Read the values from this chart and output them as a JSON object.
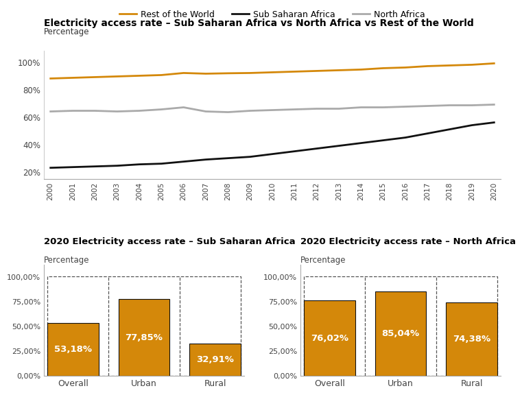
{
  "title": "Electricity access rate – Sub Saharan Africa vs North Africa vs Rest of the World",
  "subtitle": "Percentage",
  "years": [
    2000,
    2001,
    2002,
    2003,
    2004,
    2005,
    2006,
    2007,
    2008,
    2009,
    2010,
    2011,
    2012,
    2013,
    2014,
    2015,
    2016,
    2017,
    2018,
    2019,
    2020
  ],
  "rest_of_world": [
    88,
    88.5,
    89,
    89.5,
    90,
    90.5,
    92,
    91.5,
    91.8,
    92,
    92.5,
    93,
    93.5,
    94,
    94.5,
    95.5,
    96,
    97,
    97.5,
    98,
    99
  ],
  "sub_saharan": [
    23,
    23.5,
    24,
    24.5,
    25.5,
    26,
    27.5,
    29,
    30,
    31,
    33,
    35,
    37,
    39,
    41,
    43,
    45,
    48,
    51,
    54,
    56
  ],
  "north_africa": [
    64,
    64.5,
    64.5,
    64,
    64.5,
    65.5,
    67,
    64,
    63.5,
    64.5,
    65,
    65.5,
    66,
    66,
    67,
    67,
    67.5,
    68,
    68.5,
    68.5,
    69
  ],
  "line_colors": {
    "rest_of_world": "#D4880A",
    "sub_saharan": "#111111",
    "north_africa": "#aaaaaa"
  },
  "legend_labels": [
    "Rest of the World",
    "Sub Saharan Africa",
    "North Africa"
  ],
  "yticks_line": [
    20,
    40,
    60,
    80,
    100
  ],
  "ytick_labels_line": [
    "20%",
    "40%",
    "60%",
    "80%",
    "100%"
  ],
  "bar_color": "#D4880A",
  "bar_edge_color": "#111111",
  "bar_ssa": {
    "title": "2020 Electricity access rate – Sub Saharan Africa",
    "subtitle": "Percentage",
    "categories": [
      "Overall",
      "Urban",
      "Rural"
    ],
    "values": [
      53.18,
      77.85,
      32.91
    ],
    "labels": [
      "53,18%",
      "77,85%",
      "32,91%"
    ]
  },
  "bar_na": {
    "title": "2020 Electricity access rate – North Africa",
    "subtitle": "Percentage",
    "categories": [
      "Overall",
      "Urban",
      "Rural"
    ],
    "values": [
      76.02,
      85.04,
      74.38
    ],
    "labels": [
      "76,02%",
      "85,04%",
      "74,38%"
    ]
  },
  "background_color": "#ffffff"
}
